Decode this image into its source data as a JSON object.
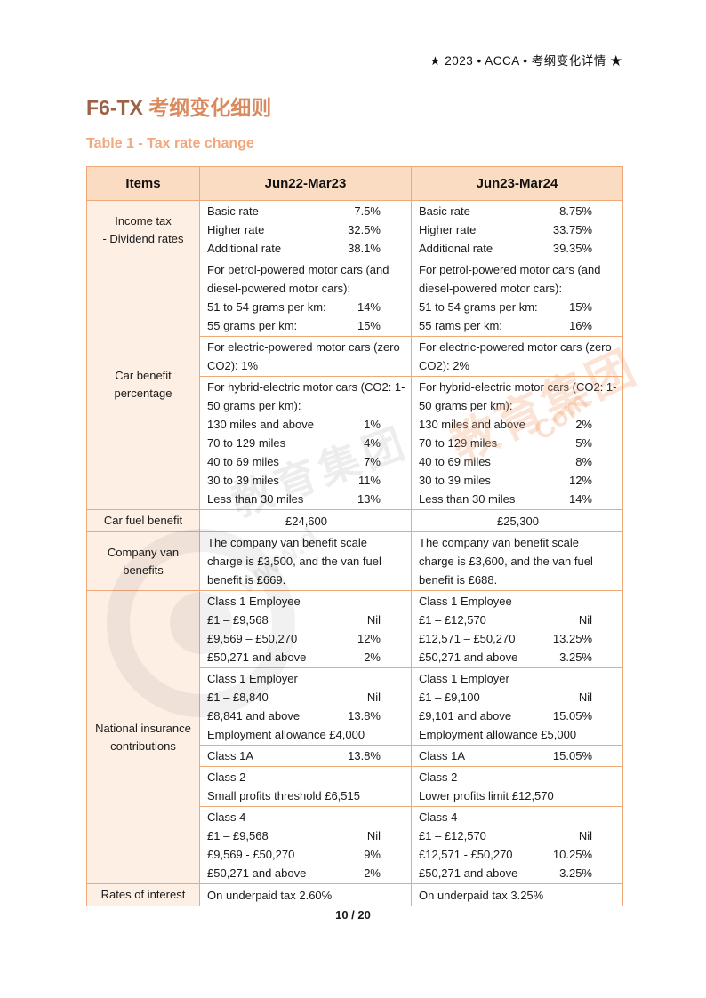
{
  "page": {
    "header_right": "★ 2023 • ACCA • 考纲变化详情 ★",
    "title_part1": "F6-TX",
    "title_part2": " 考纲变化细则",
    "subtitle": "Table 1 - Tax rate change",
    "footer_page": "10 / 20"
  },
  "colors": {
    "table_border": "#F0A878",
    "header_bg": "#FADCC3",
    "item_col_bg": "#FDEFE4",
    "text": "#1A1A1A",
    "subtitle": "#F2A87E",
    "title_brown": "#9C6245",
    "title_orange": "#D98A5F"
  },
  "watermark": {
    "cjk_gray": "教育集团",
    "www_gray": "www.d",
    "cjk_peach": "教育集团",
    "com_peach": "Com"
  },
  "table": {
    "columns": [
      "Items",
      "Jun22-Mar23",
      "Jun23-Mar24"
    ],
    "groups": [
      {
        "item": "Income tax\n- Dividend rates",
        "subrows": [
          {
            "jun22": {
              "lines": [
                {
                  "l": "Basic rate",
                  "v": "7.5%"
                },
                {
                  "l": "Higher rate",
                  "v": "32.5%"
                },
                {
                  "l": "Additional rate",
                  "v": "38.1%"
                }
              ]
            },
            "jun23": {
              "lines": [
                {
                  "l": "Basic rate",
                  "v": "8.75%"
                },
                {
                  "l": "Higher rate",
                  "v": "33.75%"
                },
                {
                  "l": "Additional rate",
                  "v": "39.35%"
                }
              ]
            }
          }
        ]
      },
      {
        "item": "Car benefit percentage",
        "subrows": [
          {
            "jun22": {
              "lines": [
                {
                  "t": "For petrol-powered motor cars (and diesel-powered motor cars):"
                },
                {
                  "l": "51 to 54 grams per km:",
                  "v": "14%"
                },
                {
                  "l": "55 grams per km:",
                  "v": "15%"
                }
              ]
            },
            "jun23": {
              "lines": [
                {
                  "t": "For petrol-powered motor cars (and diesel-powered motor cars):"
                },
                {
                  "l": "51 to 54 grams per km:",
                  "v": "15%"
                },
                {
                  "l": "55 rams per km:",
                  "v": "16%"
                }
              ]
            }
          },
          {
            "jun22": {
              "lines": [
                {
                  "t": "For electric-powered motor cars (zero CO2): 1%"
                }
              ]
            },
            "jun23": {
              "lines": [
                {
                  "t": "For electric-powered motor cars (zero CO2): 2%"
                }
              ]
            }
          },
          {
            "jun22": {
              "lines": [
                {
                  "t": "For hybrid-electric motor cars (CO2: 1-50 grams per km):"
                },
                {
                  "l": "130 miles and above",
                  "v": "1%"
                },
                {
                  "l": "70 to 129 miles",
                  "v": "4%"
                },
                {
                  "l": "40 to 69 miles",
                  "v": "7%"
                },
                {
                  "l": "30 to 39 miles",
                  "v": "11%"
                },
                {
                  "l": "Less than 30 miles",
                  "v": "13%"
                }
              ]
            },
            "jun23": {
              "lines": [
                {
                  "t": "For hybrid-electric motor cars (CO2: 1-50 grams per km):"
                },
                {
                  "l": "130 miles and above",
                  "v": "2%"
                },
                {
                  "l": "70 to 129 miles",
                  "v": "5%"
                },
                {
                  "l": "40 to 69 miles",
                  "v": "8%"
                },
                {
                  "l": "30 to 39 miles",
                  "v": "12%"
                },
                {
                  "l": "Less than 30 miles",
                  "v": "14%"
                }
              ]
            }
          }
        ]
      },
      {
        "item": "Car fuel benefit",
        "subrows": [
          {
            "jun22": {
              "center": true,
              "lines": [
                {
                  "t": "£24,600"
                }
              ]
            },
            "jun23": {
              "center": true,
              "lines": [
                {
                  "t": "£25,300"
                }
              ]
            }
          }
        ]
      },
      {
        "item": "Company van benefits",
        "subrows": [
          {
            "jun22": {
              "lines": [
                {
                  "t": "The company van benefit scale charge is £3,500, and the van fuel benefit is £669."
                }
              ]
            },
            "jun23": {
              "lines": [
                {
                  "t": "The company van benefit scale charge is £3,600, and the van fuel benefit is £688."
                }
              ]
            }
          }
        ]
      },
      {
        "item": "National insurance contributions",
        "subrows": [
          {
            "jun22": {
              "lines": [
                {
                  "t": "Class 1 Employee"
                },
                {
                  "l": "£1 – £9,568",
                  "v": "Nil"
                },
                {
                  "l": "£9,569 – £50,270",
                  "v": "12%"
                },
                {
                  "l": "£50,271 and above",
                  "v": "2%"
                }
              ]
            },
            "jun23": {
              "lines": [
                {
                  "t": "Class 1 Employee"
                },
                {
                  "l": "£1 – £12,570",
                  "v": "Nil"
                },
                {
                  "l": "£12,571 – £50,270",
                  "v": "13.25%"
                },
                {
                  "l": "£50,271 and above",
                  "v": "3.25%"
                }
              ]
            }
          },
          {
            "jun22": {
              "lines": [
                {
                  "t": "Class 1 Employer"
                },
                {
                  "l": "£1 – £8,840",
                  "v": "Nil"
                },
                {
                  "l": "£8,841 and above",
                  "v": "13.8%"
                },
                {
                  "t": "Employment allowance £4,000"
                }
              ]
            },
            "jun23": {
              "lines": [
                {
                  "t": "Class 1 Employer"
                },
                {
                  "l": "£1 – £9,100",
                  "v": "Nil"
                },
                {
                  "l": "£9,101 and above",
                  "v": "15.05%"
                },
                {
                  "t": "Employment allowance £5,000"
                }
              ]
            }
          },
          {
            "jun22": {
              "lines": [
                {
                  "l": "Class 1A",
                  "v": "13.8%"
                }
              ]
            },
            "jun23": {
              "lines": [
                {
                  "l": "Class 1A",
                  "v": "15.05%"
                }
              ]
            }
          },
          {
            "jun22": {
              "lines": [
                {
                  "t": "Class 2"
                },
                {
                  "t": "Small profits threshold £6,515"
                }
              ]
            },
            "jun23": {
              "lines": [
                {
                  "t": "Class 2"
                },
                {
                  "t": "Lower profits limit £12,570"
                }
              ]
            }
          },
          {
            "jun22": {
              "lines": [
                {
                  "t": "Class 4"
                },
                {
                  "l": "£1 – £9,568",
                  "v": "Nil"
                },
                {
                  "l": "£9,569 - £50,270",
                  "v": "9%"
                },
                {
                  "l": "£50,271 and above",
                  "v": "2%"
                }
              ]
            },
            "jun23": {
              "lines": [
                {
                  "t": "Class 4"
                },
                {
                  "l": "£1 – £12,570",
                  "v": "Nil"
                },
                {
                  "l": "£12,571 - £50,270",
                  "v": "10.25%"
                },
                {
                  "l": "£50,271 and above",
                  "v": "3.25%"
                }
              ]
            }
          }
        ]
      },
      {
        "item": "Rates of interest",
        "subrows": [
          {
            "jun22": {
              "lines": [
                {
                  "t": "On underpaid tax 2.60%"
                }
              ]
            },
            "jun23": {
              "lines": [
                {
                  "t": "On underpaid tax 3.25%"
                }
              ]
            }
          }
        ]
      }
    ]
  }
}
